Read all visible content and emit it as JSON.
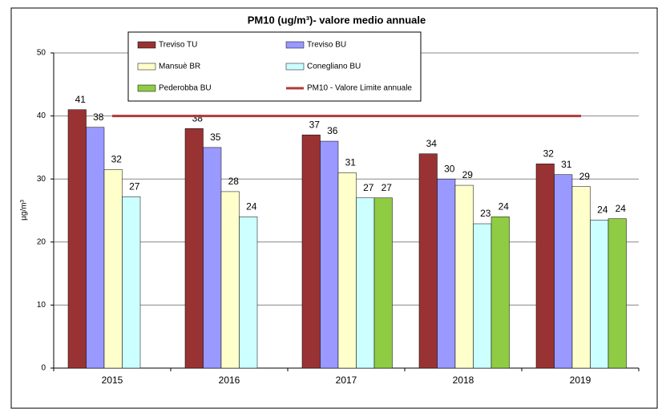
{
  "chart_data": {
    "type": "bar",
    "title": "PM10 (ug/m³)- valore medio annuale",
    "y_label": "µg/m³",
    "categories": [
      "2015",
      "2016",
      "2017",
      "2018",
      "2019"
    ],
    "series": [
      {
        "name": "Treviso TU",
        "color": "#993333",
        "values": [
          41,
          38,
          37,
          34,
          32.4
        ],
        "value_labels": [
          "41",
          "38",
          "37",
          "34",
          "32"
        ]
      },
      {
        "name": "Treviso BU",
        "color": "#9999ff",
        "values": [
          38.2,
          35,
          36,
          30,
          30.7
        ],
        "value_labels": [
          "38",
          "35",
          "36",
          "30",
          "31"
        ]
      },
      {
        "name": "Mansuè BR",
        "color": "#ffffcc",
        "values": [
          31.5,
          28,
          31,
          29,
          28.8
        ],
        "value_labels": [
          "32",
          "28",
          "31",
          "29",
          "29"
        ]
      },
      {
        "name": "Conegliano BU",
        "color": "#ccffff",
        "values": [
          27.2,
          24,
          27,
          22.9,
          23.5
        ],
        "value_labels": [
          "27",
          "24",
          "27",
          "23",
          "24"
        ]
      },
      {
        "name": "Pederobba BU",
        "color": "#8fcc44",
        "values": [
          null,
          null,
          27,
          24,
          23.7
        ],
        "value_labels": [
          null,
          null,
          "27",
          "24",
          "24"
        ]
      }
    ],
    "limit": {
      "name": "PM10 - Valore Limite annuale",
      "color": "#b03a3a",
      "value": 40
    },
    "ylim": [
      0,
      50
    ],
    "yticks": [
      0,
      10,
      20,
      30,
      40,
      50
    ],
    "grid": true
  }
}
